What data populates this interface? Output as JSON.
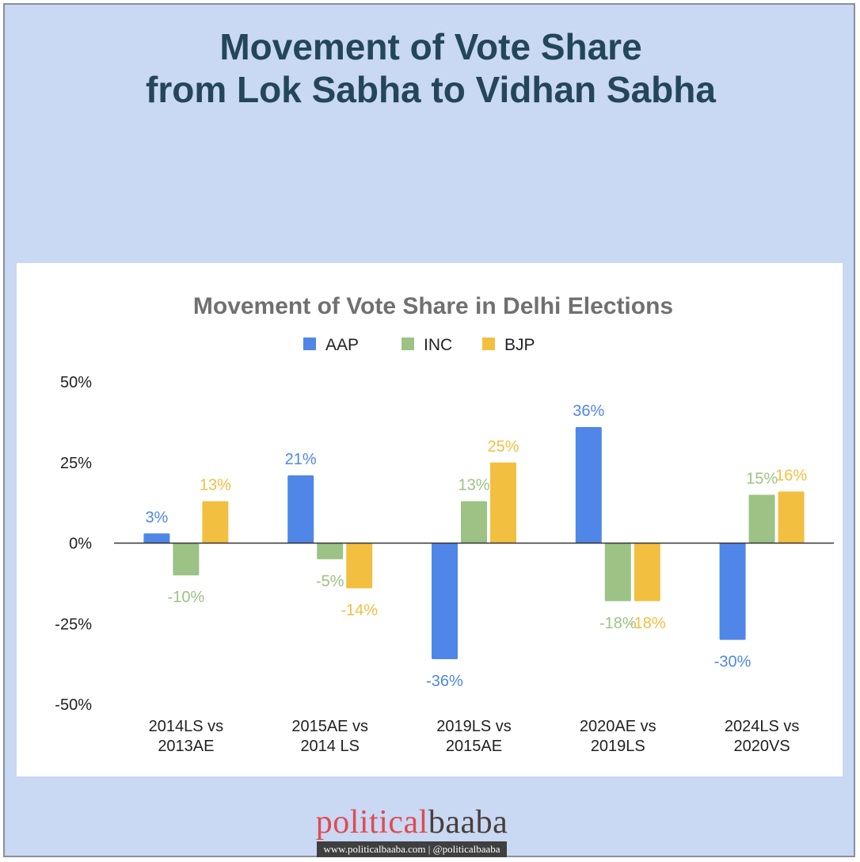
{
  "page": {
    "title": "Movement of Vote Share\nfrom Lok Sabha to Vidhan Sabha"
  },
  "logo": {
    "part1": "political",
    "part2": "baaba",
    "subtitle": "www.politicalbaaba.com | @politicalbaaba"
  },
  "colors": {
    "background": "#c9d8f3",
    "title": "#23465a",
    "AAP": "#4f86e8",
    "INC": "#9cc285",
    "BJP": "#f3bf40"
  },
  "chart_data": {
    "type": "bar",
    "title": "Movement of Vote Share in Delhi Elections",
    "legend_position": "top",
    "grid": false,
    "ylim": [
      -50,
      50
    ],
    "yticks": [
      50,
      25,
      0,
      -25,
      -50
    ],
    "ytick_labels": [
      "50%",
      "25%",
      "0%",
      "-25%",
      "-50%"
    ],
    "categories": [
      [
        "2014LS vs",
        "2013AE"
      ],
      [
        "2015AE vs",
        "2014 LS"
      ],
      [
        "2019LS vs",
        "2015AE"
      ],
      [
        "2020AE vs",
        "2019LS"
      ],
      [
        "2024LS vs",
        "2020VS"
      ]
    ],
    "series": [
      {
        "name": "AAP",
        "color": "#4f86e8",
        "values": [
          3,
          21,
          -36,
          36,
          -30
        ],
        "labels": [
          "3%",
          "21%",
          "-36%",
          "36%",
          "-30%"
        ]
      },
      {
        "name": "INC",
        "color": "#9cc285",
        "values": [
          -10,
          -5,
          13,
          -18,
          15
        ],
        "labels": [
          "-10%",
          "-5%",
          "13%",
          "-18%",
          "15%"
        ]
      },
      {
        "name": "BJP",
        "color": "#f3bf40",
        "values": [
          13,
          -14,
          25,
          -18,
          16
        ],
        "labels": [
          "13%",
          "-14%",
          "25%",
          "-18%",
          "16%"
        ]
      }
    ]
  }
}
